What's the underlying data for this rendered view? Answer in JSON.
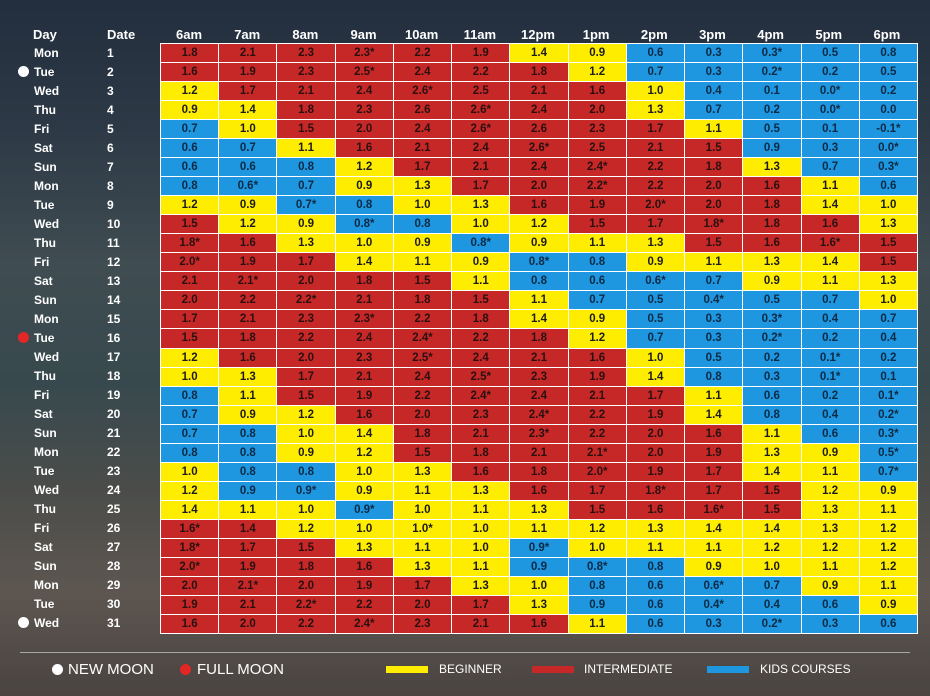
{
  "header": {
    "day_label": "Day",
    "date_label": "Date",
    "times": [
      "6am",
      "7am",
      "8am",
      "9am",
      "10am",
      "11am",
      "12pm",
      "1pm",
      "2pm",
      "3pm",
      "4pm",
      "5pm",
      "6pm"
    ]
  },
  "rows": [
    {
      "day": "Mon",
      "date": "1",
      "moon": "",
      "v": [
        "1.8",
        "2.1",
        "2.3",
        "2.3*",
        "2.2",
        "1.9",
        "1.4",
        "0.9",
        "0.6",
        "0.3",
        "0.3*",
        "0.5",
        "0.8"
      ],
      "c": [
        "r",
        "r",
        "r",
        "r",
        "r",
        "r",
        "y",
        "y",
        "b",
        "b",
        "b",
        "b",
        "b"
      ]
    },
    {
      "day": "Tue",
      "date": "2",
      "moon": "new",
      "v": [
        "1.6",
        "1.9",
        "2.3",
        "2.5*",
        "2.4",
        "2.2",
        "1.8",
        "1.2",
        "0.7",
        "0.3",
        "0.2*",
        "0.2",
        "0.5"
      ],
      "c": [
        "r",
        "r",
        "r",
        "r",
        "r",
        "r",
        "r",
        "y",
        "b",
        "b",
        "b",
        "b",
        "b"
      ]
    },
    {
      "day": "Wed",
      "date": "3",
      "moon": "",
      "v": [
        "1.2",
        "1.7",
        "2.1",
        "2.4",
        "2.6*",
        "2.5",
        "2.1",
        "1.6",
        "1.0",
        "0.4",
        "0.1",
        "0.0*",
        "0.2"
      ],
      "c": [
        "y",
        "r",
        "r",
        "r",
        "r",
        "r",
        "r",
        "r",
        "y",
        "b",
        "b",
        "b",
        "b"
      ]
    },
    {
      "day": "Thu",
      "date": "4",
      "moon": "",
      "v": [
        "0.9",
        "1.4",
        "1.8",
        "2.3",
        "2.6",
        "2.6*",
        "2.4",
        "2.0",
        "1.3",
        "0.7",
        "0.2",
        "0.0*",
        "0.0"
      ],
      "c": [
        "y",
        "y",
        "r",
        "r",
        "r",
        "r",
        "r",
        "r",
        "y",
        "b",
        "b",
        "b",
        "b"
      ]
    },
    {
      "day": "Fri",
      "date": "5",
      "moon": "",
      "v": [
        "0.7",
        "1.0",
        "1.5",
        "2.0",
        "2.4",
        "2.6*",
        "2.6",
        "2.3",
        "1.7",
        "1.1",
        "0.5",
        "0.1",
        "-0.1*"
      ],
      "c": [
        "b",
        "y",
        "r",
        "r",
        "r",
        "r",
        "r",
        "r",
        "r",
        "y",
        "b",
        "b",
        "b"
      ]
    },
    {
      "day": "Sat",
      "date": "6",
      "moon": "",
      "v": [
        "0.6",
        "0.7",
        "1.1",
        "1.6",
        "2.1",
        "2.4",
        "2.6*",
        "2.5",
        "2.1",
        "1.5",
        "0.9",
        "0.3",
        "0.0*"
      ],
      "c": [
        "b",
        "b",
        "y",
        "r",
        "r",
        "r",
        "r",
        "r",
        "r",
        "r",
        "b",
        "b",
        "b"
      ]
    },
    {
      "day": "Sun",
      "date": "7",
      "moon": "",
      "v": [
        "0.6",
        "0.6",
        "0.8",
        "1.2",
        "1.7",
        "2.1",
        "2.4",
        "2.4*",
        "2.2",
        "1.8",
        "1.3",
        "0.7",
        "0.3*"
      ],
      "c": [
        "b",
        "b",
        "b",
        "y",
        "r",
        "r",
        "r",
        "r",
        "r",
        "r",
        "y",
        "b",
        "b"
      ]
    },
    {
      "day": "Mon",
      "date": "8",
      "moon": "",
      "v": [
        "0.8",
        "0.6*",
        "0.7",
        "0.9",
        "1.3",
        "1.7",
        "2.0",
        "2.2*",
        "2.2",
        "2.0",
        "1.6",
        "1.1",
        "0.6"
      ],
      "c": [
        "b",
        "b",
        "b",
        "y",
        "y",
        "r",
        "r",
        "r",
        "r",
        "r",
        "r",
        "y",
        "b"
      ]
    },
    {
      "day": "Tue",
      "date": "9",
      "moon": "",
      "v": [
        "1.2",
        "0.9",
        "0.7*",
        "0.8",
        "1.0",
        "1.3",
        "1.6",
        "1.9",
        "2.0*",
        "2.0",
        "1.8",
        "1.4",
        "1.0"
      ],
      "c": [
        "y",
        "y",
        "b",
        "b",
        "y",
        "y",
        "r",
        "r",
        "r",
        "r",
        "r",
        "y",
        "y"
      ]
    },
    {
      "day": "Wed",
      "date": "10",
      "moon": "",
      "v": [
        "1.5",
        "1.2",
        "0.9",
        "0.8*",
        "0.8",
        "1.0",
        "1.2",
        "1.5",
        "1.7",
        "1.8*",
        "1.8",
        "1.6",
        "1.3"
      ],
      "c": [
        "r",
        "y",
        "y",
        "b",
        "b",
        "y",
        "y",
        "r",
        "r",
        "r",
        "r",
        "r",
        "y"
      ]
    },
    {
      "day": "Thu",
      "date": "11",
      "moon": "",
      "v": [
        "1.8*",
        "1.6",
        "1.3",
        "1.0",
        "0.9",
        "0.8*",
        "0.9",
        "1.1",
        "1.3",
        "1.5",
        "1.6",
        "1.6*",
        "1.5"
      ],
      "c": [
        "r",
        "r",
        "y",
        "y",
        "y",
        "b",
        "y",
        "y",
        "y",
        "r",
        "r",
        "r",
        "r"
      ]
    },
    {
      "day": "Fri",
      "date": "12",
      "moon": "",
      "v": [
        "2.0*",
        "1.9",
        "1.7",
        "1.4",
        "1.1",
        "0.9",
        "0.8*",
        "0.8",
        "0.9",
        "1.1",
        "1.3",
        "1.4",
        "1.5"
      ],
      "c": [
        "r",
        "r",
        "r",
        "y",
        "y",
        "y",
        "b",
        "b",
        "y",
        "y",
        "y",
        "y",
        "r"
      ]
    },
    {
      "day": "Sat",
      "date": "13",
      "moon": "",
      "v": [
        "2.1",
        "2.1*",
        "2.0",
        "1.8",
        "1.5",
        "1.1",
        "0.8",
        "0.6",
        "0.6*",
        "0.7",
        "0.9",
        "1.1",
        "1.3"
      ],
      "c": [
        "r",
        "r",
        "r",
        "r",
        "r",
        "y",
        "b",
        "b",
        "b",
        "b",
        "y",
        "y",
        "y"
      ]
    },
    {
      "day": "Sun",
      "date": "14",
      "moon": "",
      "v": [
        "2.0",
        "2.2",
        "2.2*",
        "2.1",
        "1.8",
        "1.5",
        "1.1",
        "0.7",
        "0.5",
        "0.4*",
        "0.5",
        "0.7",
        "1.0"
      ],
      "c": [
        "r",
        "r",
        "r",
        "r",
        "r",
        "r",
        "y",
        "b",
        "b",
        "b",
        "b",
        "b",
        "y"
      ]
    },
    {
      "day": "Mon",
      "date": "15",
      "moon": "",
      "v": [
        "1.7",
        "2.1",
        "2.3",
        "2.3*",
        "2.2",
        "1.8",
        "1.4",
        "0.9",
        "0.5",
        "0.3",
        "0.3*",
        "0.4",
        "0.7"
      ],
      "c": [
        "r",
        "r",
        "r",
        "r",
        "r",
        "r",
        "y",
        "y",
        "b",
        "b",
        "b",
        "b",
        "b"
      ]
    },
    {
      "day": "Tue",
      "date": "16",
      "moon": "full",
      "v": [
        "1.5",
        "1.8",
        "2.2",
        "2.4",
        "2.4*",
        "2.2",
        "1.8",
        "1.2",
        "0.7",
        "0.3",
        "0.2*",
        "0.2",
        "0.4"
      ],
      "c": [
        "r",
        "r",
        "r",
        "r",
        "r",
        "r",
        "r",
        "y",
        "b",
        "b",
        "b",
        "b",
        "b"
      ]
    },
    {
      "day": "Wed",
      "date": "17",
      "moon": "",
      "v": [
        "1.2",
        "1.6",
        "2.0",
        "2.3",
        "2.5*",
        "2.4",
        "2.1",
        "1.6",
        "1.0",
        "0.5",
        "0.2",
        "0.1*",
        "0.2"
      ],
      "c": [
        "y",
        "r",
        "r",
        "r",
        "r",
        "r",
        "r",
        "r",
        "y",
        "b",
        "b",
        "b",
        "b"
      ]
    },
    {
      "day": "Thu",
      "date": "18",
      "moon": "",
      "v": [
        "1.0",
        "1.3",
        "1.7",
        "2.1",
        "2.4",
        "2.5*",
        "2.3",
        "1.9",
        "1.4",
        "0.8",
        "0.3",
        "0.1*",
        "0.1"
      ],
      "c": [
        "y",
        "y",
        "r",
        "r",
        "r",
        "r",
        "r",
        "r",
        "y",
        "b",
        "b",
        "b",
        "b"
      ]
    },
    {
      "day": "Fri",
      "date": "19",
      "moon": "",
      "v": [
        "0.8",
        "1.1",
        "1.5",
        "1.9",
        "2.2",
        "2.4*",
        "2.4",
        "2.1",
        "1.7",
        "1.1",
        "0.6",
        "0.2",
        "0.1*"
      ],
      "c": [
        "b",
        "y",
        "r",
        "r",
        "r",
        "r",
        "r",
        "r",
        "r",
        "y",
        "b",
        "b",
        "b"
      ]
    },
    {
      "day": "Sat",
      "date": "20",
      "moon": "",
      "v": [
        "0.7",
        "0.9",
        "1.2",
        "1.6",
        "2.0",
        "2.3",
        "2.4*",
        "2.2",
        "1.9",
        "1.4",
        "0.8",
        "0.4",
        "0.2*"
      ],
      "c": [
        "b",
        "y",
        "y",
        "r",
        "r",
        "r",
        "r",
        "r",
        "r",
        "y",
        "b",
        "b",
        "b"
      ]
    },
    {
      "day": "Sun",
      "date": "21",
      "moon": "",
      "v": [
        "0.7",
        "0.8",
        "1.0",
        "1.4",
        "1.8",
        "2.1",
        "2.3*",
        "2.2",
        "2.0",
        "1.6",
        "1.1",
        "0.6",
        "0.3*"
      ],
      "c": [
        "b",
        "b",
        "y",
        "y",
        "r",
        "r",
        "r",
        "r",
        "r",
        "r",
        "y",
        "b",
        "b"
      ]
    },
    {
      "day": "Mon",
      "date": "22",
      "moon": "",
      "v": [
        "0.8",
        "0.8",
        "0.9",
        "1.2",
        "1.5",
        "1.8",
        "2.1",
        "2.1*",
        "2.0",
        "1.9",
        "1.3",
        "0.9",
        "0.5*"
      ],
      "c": [
        "b",
        "b",
        "y",
        "y",
        "r",
        "r",
        "r",
        "r",
        "r",
        "r",
        "y",
        "y",
        "b"
      ]
    },
    {
      "day": "Tue",
      "date": "23",
      "moon": "",
      "v": [
        "1.0",
        "0.8",
        "0.8",
        "1.0",
        "1.3",
        "1.6",
        "1.8",
        "2.0*",
        "1.9",
        "1.7",
        "1.4",
        "1.1",
        "0.7*"
      ],
      "c": [
        "y",
        "b",
        "b",
        "y",
        "y",
        "r",
        "r",
        "r",
        "r",
        "r",
        "y",
        "y",
        "b"
      ]
    },
    {
      "day": "Wed",
      "date": "24",
      "moon": "",
      "v": [
        "1.2",
        "0.9",
        "0.9*",
        "0.9",
        "1.1",
        "1.3",
        "1.6",
        "1.7",
        "1.8*",
        "1.7",
        "1.5",
        "1.2",
        "0.9"
      ],
      "c": [
        "y",
        "b",
        "b",
        "y",
        "y",
        "y",
        "r",
        "r",
        "r",
        "r",
        "r",
        "y",
        "y"
      ]
    },
    {
      "day": "Thu",
      "date": "25",
      "moon": "",
      "v": [
        "1.4",
        "1.1",
        "1.0",
        "0.9*",
        "1.0",
        "1.1",
        "1.3",
        "1.5",
        "1.6",
        "1.6*",
        "1.5",
        "1.3",
        "1.1"
      ],
      "c": [
        "y",
        "y",
        "y",
        "b",
        "y",
        "y",
        "y",
        "r",
        "r",
        "r",
        "r",
        "y",
        "y"
      ]
    },
    {
      "day": "Fri",
      "date": "26",
      "moon": "",
      "v": [
        "1.6*",
        "1.4",
        "1.2",
        "1.0",
        "1.0*",
        "1.0",
        "1.1",
        "1.2",
        "1.3",
        "1.4",
        "1.4",
        "1.3",
        "1.2"
      ],
      "c": [
        "r",
        "r",
        "y",
        "y",
        "y",
        "y",
        "y",
        "y",
        "y",
        "y",
        "y",
        "y",
        "y"
      ]
    },
    {
      "day": "Sat",
      "date": "27",
      "moon": "",
      "v": [
        "1.8*",
        "1.7",
        "1.5",
        "1.3",
        "1.1",
        "1.0",
        "0.9*",
        "1.0",
        "1.1",
        "1.1",
        "1.2",
        "1.2",
        "1.2"
      ],
      "c": [
        "r",
        "r",
        "r",
        "y",
        "y",
        "y",
        "b",
        "y",
        "y",
        "y",
        "y",
        "y",
        "y"
      ]
    },
    {
      "day": "Sun",
      "date": "28",
      "moon": "",
      "v": [
        "2.0*",
        "1.9",
        "1.8",
        "1.6",
        "1.3",
        "1.1",
        "0.9",
        "0.8*",
        "0.8",
        "0.9",
        "1.0",
        "1.1",
        "1.2"
      ],
      "c": [
        "r",
        "r",
        "r",
        "r",
        "y",
        "y",
        "b",
        "b",
        "b",
        "y",
        "y",
        "y",
        "y"
      ]
    },
    {
      "day": "Mon",
      "date": "29",
      "moon": "",
      "v": [
        "2.0",
        "2.1*",
        "2.0",
        "1.9",
        "1.7",
        "1.3",
        "1.0",
        "0.8",
        "0.6",
        "0.6*",
        "0.7",
        "0.9",
        "1.1"
      ],
      "c": [
        "r",
        "r",
        "r",
        "r",
        "r",
        "y",
        "y",
        "b",
        "b",
        "b",
        "b",
        "y",
        "y"
      ]
    },
    {
      "day": "Tue",
      "date": "30",
      "moon": "",
      "v": [
        "1.9",
        "2.1",
        "2.2*",
        "2.2",
        "2.0",
        "1.7",
        "1.3",
        "0.9",
        "0.6",
        "0.4*",
        "0.4",
        "0.6",
        "0.9"
      ],
      "c": [
        "r",
        "r",
        "r",
        "r",
        "r",
        "r",
        "y",
        "b",
        "b",
        "b",
        "b",
        "b",
        "y"
      ]
    },
    {
      "day": "Wed",
      "date": "31",
      "moon": "new",
      "v": [
        "1.6",
        "2.0",
        "2.2",
        "2.4*",
        "2.3",
        "2.1",
        "1.6",
        "1.1",
        "0.6",
        "0.3",
        "0.2*",
        "0.3",
        "0.6"
      ],
      "c": [
        "r",
        "r",
        "r",
        "r",
        "r",
        "r",
        "r",
        "y",
        "b",
        "b",
        "b",
        "b",
        "b"
      ]
    }
  ],
  "legend": {
    "new_moon": "NEW MOON",
    "full_moon": "FULL MOON",
    "beginner": "BEGINNER",
    "intermediate": "INTERMEDIATE",
    "kids": "KIDS COURSES"
  },
  "colors": {
    "beginner": "#ffed00",
    "intermediate": "#c62828",
    "kids": "#1e96e0",
    "new_moon": "#ffffff",
    "full_moon": "#e32626"
  }
}
